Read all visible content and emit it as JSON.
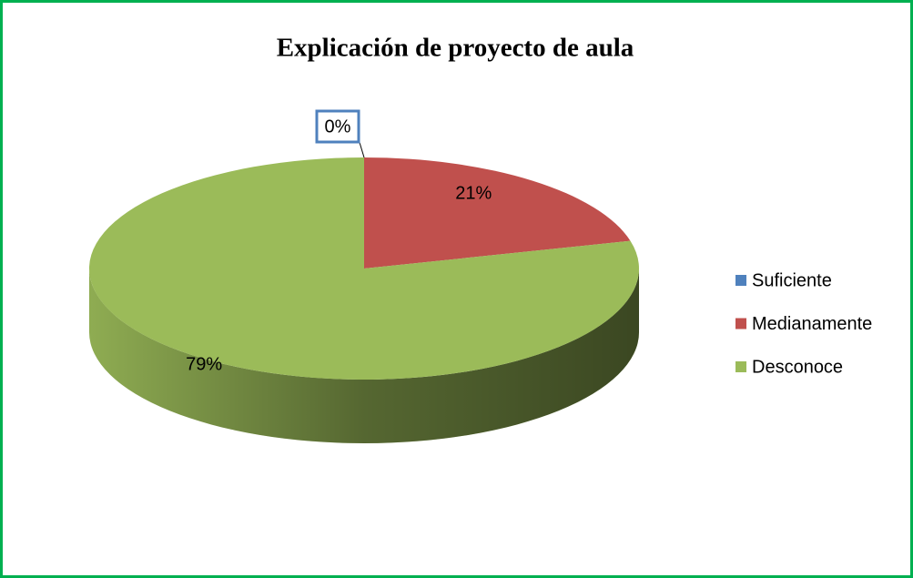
{
  "chart_data": {
    "type": "pie",
    "title": "Explicación de proyecto de aula",
    "categories": [
      "Suficiente",
      "Medianamente",
      "Desconoce"
    ],
    "values": [
      0,
      21,
      79
    ],
    "value_labels": [
      "0%",
      "21%",
      "79%"
    ],
    "colors": [
      "#4f81bd",
      "#c0504d",
      "#9bbb59"
    ],
    "legend": "right"
  }
}
